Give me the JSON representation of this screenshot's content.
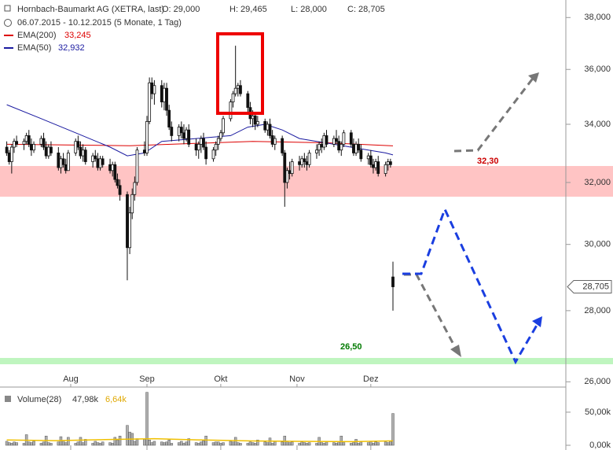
{
  "chart_data": {
    "type": "candlestick",
    "title": "Hornbach-Baumarkt AG (XETRA, last)",
    "quote": [
      "O: 29,000",
      "H: 29,465",
      "L: 28,000",
      "C: 28,705"
    ],
    "period": "06.07.2015 - 10.12.2015 (5 Monate, 1 Tag)",
    "price_label": "28,705",
    "yscale": "log",
    "ylim": [
      25900,
      38700
    ],
    "yticks": [
      {
        "value": 26000,
        "label": "26,000"
      },
      {
        "value": 28000,
        "label": "28,000"
      },
      {
        "value": 30000,
        "label": "30,000"
      },
      {
        "value": 32000,
        "label": "32,000"
      },
      {
        "value": 34000,
        "label": "34,000"
      },
      {
        "value": 36000,
        "label": "36,000"
      },
      {
        "value": 38000,
        "label": "38,000"
      }
    ],
    "xlim": [
      0,
      157
    ],
    "xticks": [
      {
        "value": 26,
        "label": "Aug"
      },
      {
        "value": 57,
        "label": "Sep"
      },
      {
        "value": 87,
        "label": "Okt"
      },
      {
        "value": 118,
        "label": "Nov"
      },
      {
        "value": 148,
        "label": "Dez"
      }
    ],
    "annotations": [
      {
        "text": "32,30",
        "color": "#cc0000"
      },
      {
        "text": "26,50",
        "color": "#007a00"
      }
    ],
    "x": [
      0,
      1,
      2,
      3,
      4,
      7,
      8,
      9,
      10,
      11,
      14,
      15,
      16,
      17,
      18,
      21,
      22,
      23,
      24,
      25,
      28,
      29,
      30,
      31,
      32,
      35,
      36,
      37,
      38,
      39,
      42,
      43,
      44,
      45,
      46,
      49,
      50,
      51,
      52,
      53,
      56,
      57,
      58,
      59,
      60,
      63,
      64,
      65,
      66,
      67,
      70,
      71,
      72,
      73,
      74,
      77,
      78,
      79,
      80,
      81,
      84,
      85,
      86,
      87,
      88,
      91,
      92,
      93,
      94,
      95,
      98,
      99,
      100,
      101,
      102,
      105,
      106,
      107,
      108,
      109,
      112,
      113,
      114,
      115,
      116,
      119,
      120,
      121,
      122,
      123,
      126,
      127,
      128,
      129,
      130,
      133,
      134,
      135,
      136,
      137,
      140,
      141,
      142,
      143,
      144,
      147,
      148,
      149,
      150,
      151,
      154,
      155,
      156,
      157
    ],
    "ohlc": [
      [
        33200,
        33400,
        32900,
        33000
      ],
      [
        33000,
        33100,
        32600,
        32700
      ],
      [
        32700,
        33300,
        32300,
        33200
      ],
      [
        33200,
        33500,
        33000,
        33400
      ],
      [
        33400,
        33600,
        33200,
        33300
      ],
      [
        33300,
        33500,
        33100,
        33400
      ],
      [
        33400,
        33700,
        33300,
        33600
      ],
      [
        33600,
        33800,
        33200,
        33300
      ],
      [
        33300,
        33500,
        32900,
        33100
      ],
      [
        33100,
        33400,
        33000,
        33300
      ],
      [
        33300,
        33600,
        33200,
        33500
      ],
      [
        33500,
        33700,
        33100,
        33200
      ],
      [
        33200,
        33400,
        32800,
        32900
      ],
      [
        32900,
        33300,
        32800,
        33200
      ],
      [
        33200,
        33400,
        32900,
        33000
      ],
      [
        33000,
        33200,
        32400,
        32500
      ],
      [
        32500,
        32900,
        32300,
        32800
      ],
      [
        32800,
        33000,
        32500,
        32600
      ],
      [
        32600,
        32800,
        32300,
        32400
      ],
      [
        32400,
        33100,
        32400,
        33000
      ],
      [
        33000,
        33500,
        32900,
        33400
      ],
      [
        33400,
        33600,
        33100,
        33200
      ],
      [
        33200,
        33400,
        32800,
        32900
      ],
      [
        32900,
        33300,
        32700,
        33100
      ],
      [
        33100,
        33200,
        32600,
        32700
      ],
      [
        32700,
        33000,
        32500,
        32900
      ],
      [
        32900,
        33100,
        32700,
        32800
      ],
      [
        32800,
        33000,
        32400,
        32500
      ],
      [
        32500,
        32900,
        32400,
        32800
      ],
      [
        32800,
        32900,
        32500,
        32600
      ],
      [
        32600,
        32800,
        32300,
        32400
      ],
      [
        32400,
        32700,
        32200,
        32600
      ],
      [
        32600,
        32700,
        32000,
        32100
      ],
      [
        32100,
        32300,
        31800,
        31900
      ],
      [
        31900,
        32100,
        31400,
        31600
      ],
      [
        31600,
        31700,
        28900,
        29900
      ],
      [
        29900,
        31200,
        29700,
        31000
      ],
      [
        31000,
        31800,
        30800,
        31600
      ],
      [
        31600,
        32200,
        31400,
        32000
      ],
      [
        32000,
        33200,
        31900,
        33100
      ],
      [
        33100,
        33400,
        32900,
        33000
      ],
      [
        33000,
        34300,
        32900,
        34100
      ],
      [
        34100,
        35700,
        34000,
        35500
      ],
      [
        35500,
        35700,
        34900,
        35100
      ],
      [
        35100,
        35600,
        34700,
        35400
      ],
      [
        35400,
        35600,
        34600,
        34800
      ],
      [
        34800,
        35500,
        34500,
        35300
      ],
      [
        35300,
        35500,
        34300,
        34500
      ],
      [
        34500,
        34700,
        33800,
        33900
      ],
      [
        33900,
        34100,
        33400,
        33600
      ],
      [
        33600,
        34000,
        33400,
        33900
      ],
      [
        33900,
        34100,
        33500,
        33700
      ],
      [
        33700,
        34000,
        33300,
        33500
      ],
      [
        33500,
        33900,
        33400,
        33800
      ],
      [
        33800,
        34000,
        33200,
        33300
      ],
      [
        33300,
        33500,
        32900,
        33100
      ],
      [
        33100,
        33400,
        32800,
        33300
      ],
      [
        33300,
        33600,
        33000,
        33500
      ],
      [
        33500,
        33700,
        33100,
        33200
      ],
      [
        33200,
        33400,
        32600,
        32800
      ],
      [
        32800,
        33200,
        32700,
        33100
      ],
      [
        33100,
        33400,
        32900,
        33300
      ],
      [
        33300,
        33600,
        33100,
        33500
      ],
      [
        33500,
        33800,
        33400,
        33700
      ],
      [
        33700,
        34300,
        33600,
        34200
      ],
      [
        34200,
        34900,
        34100,
        34800
      ],
      [
        34800,
        35200,
        34600,
        35100
      ],
      [
        35100,
        36900,
        35000,
        35300
      ],
      [
        35300,
        35500,
        35000,
        35400
      ],
      [
        35400,
        35600,
        35000,
        35100
      ],
      [
        35100,
        35200,
        34400,
        34600
      ],
      [
        34600,
        34800,
        34000,
        34200
      ],
      [
        34200,
        34500,
        33900,
        34300
      ],
      [
        34300,
        34400,
        33800,
        34000
      ],
      [
        34000,
        34300,
        33900,
        34100
      ],
      [
        34100,
        34200,
        33700,
        33800
      ],
      [
        33800,
        34100,
        33600,
        34000
      ],
      [
        34000,
        34200,
        33500,
        33600
      ],
      [
        33600,
        33800,
        33200,
        33300
      ],
      [
        33300,
        33600,
        33100,
        33500
      ],
      [
        33500,
        33600,
        32900,
        33000
      ],
      [
        33000,
        33100,
        31200,
        32000
      ],
      [
        32000,
        32500,
        31800,
        32400
      ],
      [
        32400,
        32700,
        32100,
        32300
      ],
      [
        32300,
        32800,
        32200,
        32700
      ],
      [
        32700,
        32900,
        32400,
        32600
      ],
      [
        32600,
        32900,
        32500,
        32800
      ],
      [
        32800,
        33000,
        32500,
        32700
      ],
      [
        32700,
        32900,
        32400,
        32600
      ],
      [
        32600,
        33100,
        32500,
        33000
      ],
      [
        33000,
        33300,
        32800,
        33100
      ],
      [
        33100,
        33400,
        32900,
        33300
      ],
      [
        33300,
        33500,
        33000,
        33200
      ],
      [
        33200,
        33700,
        33100,
        33600
      ],
      [
        33600,
        33800,
        33200,
        33300
      ],
      [
        33300,
        33600,
        33200,
        33500
      ],
      [
        33500,
        33800,
        33300,
        33400
      ],
      [
        33400,
        33600,
        33000,
        33100
      ],
      [
        33100,
        33400,
        32900,
        33300
      ],
      [
        33300,
        33800,
        33200,
        33700
      ],
      [
        33700,
        33800,
        33200,
        33300
      ],
      [
        33300,
        33500,
        32900,
        33000
      ],
      [
        33000,
        33400,
        32900,
        33300
      ],
      [
        33300,
        33500,
        33000,
        33100
      ],
      [
        33100,
        33300,
        32700,
        32800
      ],
      [
        32800,
        33000,
        32600,
        32900
      ],
      [
        32900,
        33100,
        32500,
        32600
      ],
      [
        32600,
        32800,
        32300,
        32500
      ],
      [
        32500,
        32800,
        32400,
        32700
      ],
      [
        32700,
        32900,
        32200,
        32300
      ],
      [
        32300,
        32700,
        32200,
        32600
      ],
      [
        32600,
        32800,
        32400,
        32700
      ],
      [
        32700,
        32800,
        32500,
        32600
      ],
      [
        29000,
        29465,
        28000,
        28705
      ]
    ],
    "series": [
      {
        "name": "EMA(200)",
        "last_label": "33,245",
        "color": "#dd0000",
        "x": [
          0,
          50,
          100,
          130,
          157
        ],
        "values": [
          33300,
          33250,
          33400,
          33350,
          33245
        ]
      },
      {
        "name": "EMA(50)",
        "last_label": "32,932",
        "color": "#1a1aa0",
        "x": [
          0,
          14,
          28,
          42,
          49,
          56,
          63,
          77,
          91,
          98,
          105,
          112,
          119,
          133,
          147,
          154,
          157
        ],
        "values": [
          34700,
          34200,
          33700,
          33200,
          32900,
          33000,
          33400,
          33500,
          33600,
          33900,
          34000,
          33800,
          33500,
          33300,
          33100,
          33000,
          32932
        ]
      }
    ],
    "volume": {
      "name": "Volume(28)",
      "last_label": "47,98k",
      "avg_label": "6,64k",
      "ylim": [
        0,
        82000
      ],
      "yticks": [
        {
          "value": 0,
          "label": "0,00k"
        },
        {
          "value": 50000,
          "label": "50,00k"
        }
      ],
      "values": [
        6000,
        4000,
        3000,
        5000,
        4000,
        3000,
        16000,
        5000,
        4000,
        6000,
        3000,
        5000,
        14000,
        4000,
        3000,
        5000,
        13000,
        7000,
        4000,
        12000,
        3000,
        5000,
        12000,
        4000,
        9000,
        3000,
        6000,
        4000,
        3000,
        5000,
        4000,
        3000,
        12000,
        8000,
        14000,
        30000,
        20000,
        18000,
        6000,
        10000,
        9000,
        80000,
        8000,
        4000,
        6000,
        5000,
        4000,
        5000,
        8000,
        3000,
        4000,
        6000,
        3000,
        5000,
        10000,
        4000,
        3000,
        5000,
        7000,
        14000,
        4000,
        5000,
        5000,
        3000,
        4000,
        6000,
        5000,
        12000,
        4000,
        3000,
        3000,
        5000,
        4000,
        3000,
        8000,
        5000,
        4000,
        11000,
        3000,
        6000,
        5000,
        14000,
        6000,
        4000,
        5000,
        3000,
        5000,
        4000,
        3000,
        4000,
        3000,
        12000,
        4000,
        3000,
        5000,
        4000,
        3000,
        5000,
        14000,
        4000,
        3000,
        4000,
        9000,
        3000,
        5000,
        4000,
        6000,
        3000,
        5000,
        4000,
        5000,
        4000,
        6000,
        47980
      ],
      "ma": {
        "x": [
          0,
          20,
          40,
          60,
          80,
          100,
          120,
          140,
          157
        ],
        "values": [
          8000,
          7000,
          8500,
          10000,
          8000,
          6500,
          6000,
          5500,
          6640
        ]
      }
    }
  }
}
